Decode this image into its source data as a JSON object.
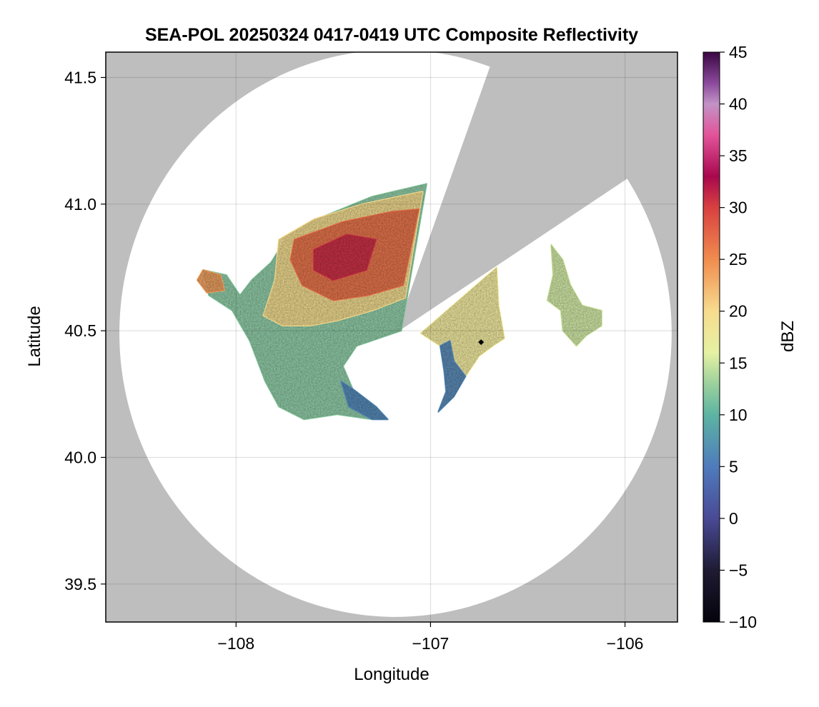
{
  "chart_data": {
    "type": "heatmap",
    "title": "SEA-POL 20250324 0417-0419 UTC Composite Reflectivity",
    "xlabel": "Longitude",
    "ylabel": "Latitude",
    "xlim": [
      -108.67,
      -105.73
    ],
    "ylim": [
      39.35,
      41.6
    ],
    "xticks": [
      -108,
      -107,
      -106
    ],
    "xtick_labels": [
      "−108",
      "−107",
      "−106"
    ],
    "yticks": [
      39.5,
      40.0,
      40.5,
      41.0,
      41.5
    ],
    "ytick_labels": [
      "39.5",
      "40.0",
      "40.5",
      "41.0",
      "41.5"
    ],
    "grid": true,
    "background_color": "#bebebe",
    "radar": {
      "center_lon": -107.18,
      "center_lat": 40.49,
      "range_lon_deg": 1.42,
      "range_lat_deg": 1.12,
      "blocked_sectors_deg_from_north": [
        [
          20,
          57
        ]
      ]
    },
    "marker": {
      "lon": -106.74,
      "lat": 40.455,
      "color": "#000000"
    },
    "colorbar": {
      "label": "dBZ",
      "range": [
        -10,
        45
      ],
      "ticks": [
        -10,
        -5,
        0,
        5,
        10,
        15,
        20,
        25,
        30,
        35,
        40,
        45
      ],
      "tick_labels": [
        "−10",
        "−5",
        "0",
        "5",
        "10",
        "15",
        "20",
        "25",
        "30",
        "35",
        "40",
        "45"
      ],
      "colormap": [
        [
          -10,
          "#05030c"
        ],
        [
          -5,
          "#1e1b33"
        ],
        [
          0,
          "#4a4a96"
        ],
        [
          5,
          "#4f7bbd"
        ],
        [
          10,
          "#5cb4a2"
        ],
        [
          13,
          "#9cd19d"
        ],
        [
          16,
          "#e6f1a2"
        ],
        [
          20,
          "#f7dc8e"
        ],
        [
          25,
          "#f08c4e"
        ],
        [
          30,
          "#d84040"
        ],
        [
          33,
          "#a8084e"
        ],
        [
          37,
          "#e3539a"
        ],
        [
          40,
          "#c293c6"
        ],
        [
          42,
          "#8b4a9c"
        ],
        [
          45,
          "#3b0743"
        ]
      ]
    },
    "echo_regions": [
      {
        "name": "main-echo",
        "dbz": 12,
        "polygon": [
          [
            -108.17,
            40.74
          ],
          [
            -108.05,
            40.72
          ],
          [
            -107.98,
            40.64
          ],
          [
            -107.92,
            40.7
          ],
          [
            -107.82,
            40.77
          ],
          [
            -107.74,
            40.87
          ],
          [
            -107.62,
            40.93
          ],
          [
            -107.46,
            40.98
          ],
          [
            -107.3,
            41.03
          ],
          [
            -107.02,
            41.08
          ],
          [
            -107.15,
            40.5
          ],
          [
            -107.38,
            40.44
          ],
          [
            -107.45,
            40.36
          ],
          [
            -107.4,
            40.27
          ],
          [
            -107.28,
            40.2
          ],
          [
            -107.22,
            40.15
          ],
          [
            -107.3,
            40.15
          ],
          [
            -107.48,
            40.17
          ],
          [
            -107.65,
            40.15
          ],
          [
            -107.78,
            40.2
          ],
          [
            -107.85,
            40.3
          ],
          [
            -107.93,
            40.46
          ],
          [
            -108.02,
            40.58
          ],
          [
            -108.14,
            40.64
          ]
        ]
      },
      {
        "name": "core-moderate",
        "dbz": 20,
        "polygon": [
          [
            -107.78,
            40.86
          ],
          [
            -107.6,
            40.94
          ],
          [
            -107.35,
            41.0
          ],
          [
            -107.04,
            41.05
          ],
          [
            -107.13,
            40.63
          ],
          [
            -107.3,
            40.58
          ],
          [
            -107.48,
            40.54
          ],
          [
            -107.62,
            40.52
          ],
          [
            -107.76,
            40.52
          ],
          [
            -107.86,
            40.56
          ],
          [
            -107.8,
            40.7
          ]
        ]
      },
      {
        "name": "core-strong",
        "dbz": 27,
        "polygon": [
          [
            -107.7,
            40.86
          ],
          [
            -107.45,
            40.93
          ],
          [
            -107.2,
            40.97
          ],
          [
            -107.06,
            40.98
          ],
          [
            -107.14,
            40.68
          ],
          [
            -107.32,
            40.64
          ],
          [
            -107.5,
            40.62
          ],
          [
            -107.66,
            40.68
          ],
          [
            -107.72,
            40.78
          ]
        ]
      },
      {
        "name": "core-peak",
        "dbz": 31,
        "polygon": [
          [
            -107.6,
            40.82
          ],
          [
            -107.43,
            40.88
          ],
          [
            -107.28,
            40.86
          ],
          [
            -107.33,
            40.74
          ],
          [
            -107.5,
            40.7
          ],
          [
            -107.6,
            40.74
          ]
        ]
      },
      {
        "name": "west-arm",
        "dbz": 24,
        "polygon": [
          [
            -108.17,
            40.74
          ],
          [
            -108.08,
            40.72
          ],
          [
            -108.06,
            40.66
          ],
          [
            -108.15,
            40.65
          ],
          [
            -108.2,
            40.7
          ]
        ]
      },
      {
        "name": "south-gradient",
        "dbz": 6,
        "polygon": [
          [
            -107.4,
            40.27
          ],
          [
            -107.28,
            40.2
          ],
          [
            -107.22,
            40.15
          ],
          [
            -107.3,
            40.15
          ],
          [
            -107.42,
            40.2
          ],
          [
            -107.46,
            40.3
          ]
        ]
      },
      {
        "name": "east-echo",
        "dbz": 18,
        "polygon": [
          [
            -107.05,
            40.49
          ],
          [
            -106.66,
            40.75
          ],
          [
            -106.65,
            40.6
          ],
          [
            -106.62,
            40.47
          ],
          [
            -106.68,
            40.44
          ],
          [
            -106.75,
            40.4
          ],
          [
            -106.82,
            40.32
          ],
          [
            -106.88,
            40.24
          ],
          [
            -106.96,
            40.18
          ],
          [
            -106.92,
            40.26
          ],
          [
            -106.93,
            40.34
          ],
          [
            -106.95,
            40.44
          ]
        ]
      },
      {
        "name": "east-gradient",
        "dbz": 6,
        "polygon": [
          [
            -106.95,
            40.44
          ],
          [
            -106.93,
            40.34
          ],
          [
            -106.92,
            40.26
          ],
          [
            -106.96,
            40.18
          ],
          [
            -106.88,
            40.24
          ],
          [
            -106.82,
            40.32
          ],
          [
            -106.88,
            40.38
          ],
          [
            -106.9,
            40.46
          ]
        ]
      },
      {
        "name": "far-east-cells",
        "dbz": 15,
        "polygon": [
          [
            -106.38,
            40.84
          ],
          [
            -106.32,
            40.78
          ],
          [
            -106.28,
            40.68
          ],
          [
            -106.22,
            40.6
          ],
          [
            -106.12,
            40.58
          ],
          [
            -106.12,
            40.52
          ],
          [
            -106.2,
            40.48
          ],
          [
            -106.25,
            40.44
          ],
          [
            -106.32,
            40.5
          ],
          [
            -106.33,
            40.58
          ],
          [
            -106.4,
            40.62
          ],
          [
            -106.37,
            40.72
          ]
        ]
      }
    ]
  }
}
